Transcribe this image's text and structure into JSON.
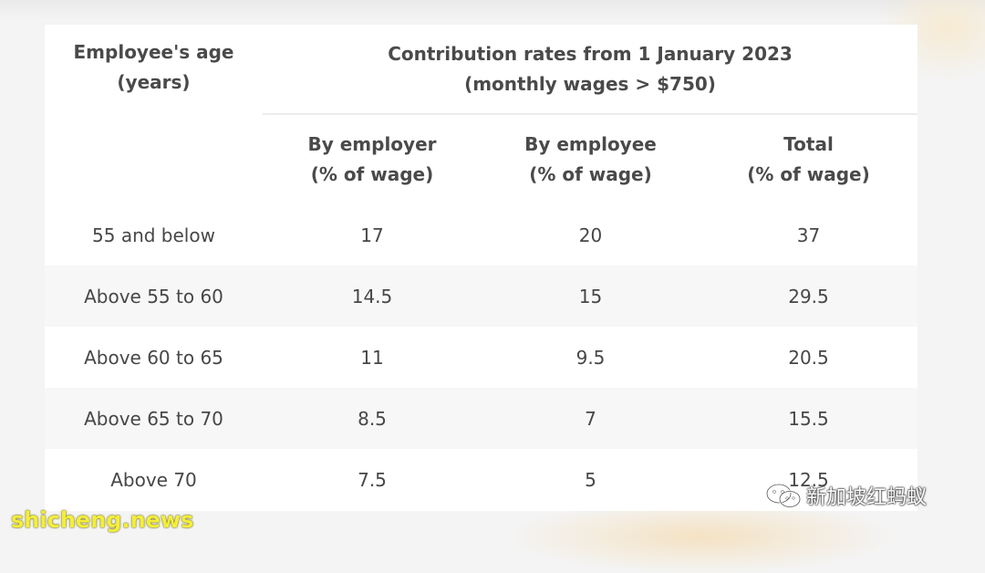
{
  "table": {
    "header": {
      "age_line1": "Employee's age",
      "age_line2": "(years)",
      "rates_line1": "Contribution rates from 1 January 2023",
      "rates_line2": "(monthly wages > $750)",
      "employer_line1": "By employer",
      "employer_line2": "(% of wage)",
      "employee_line1": "By employee",
      "employee_line2": "(% of wage)",
      "total_line1": "Total",
      "total_line2": "(% of wage)"
    },
    "rows": [
      {
        "age": "55 and below",
        "employer": "17",
        "employee": "20",
        "total": "37"
      },
      {
        "age": "Above 55 to 60",
        "employer": "14.5",
        "employee": "15",
        "total": "29.5"
      },
      {
        "age": "Above 60 to 65",
        "employer": "11",
        "employee": "9.5",
        "total": "20.5"
      },
      {
        "age": "Above 65 to 70",
        "employer": "8.5",
        "employee": "7",
        "total": "15.5"
      },
      {
        "age": "Above 70",
        "employer": "7.5",
        "employee": "5",
        "total": "12.5"
      }
    ]
  },
  "watermark": {
    "account_name": "新加坡红蚂蚁",
    "site": "shicheng.news",
    "logo_icon": "wechat-icon"
  },
  "colors": {
    "row_alt": "#f7f7f7",
    "text": "#474747",
    "site_mark": "#f4ee3a"
  }
}
